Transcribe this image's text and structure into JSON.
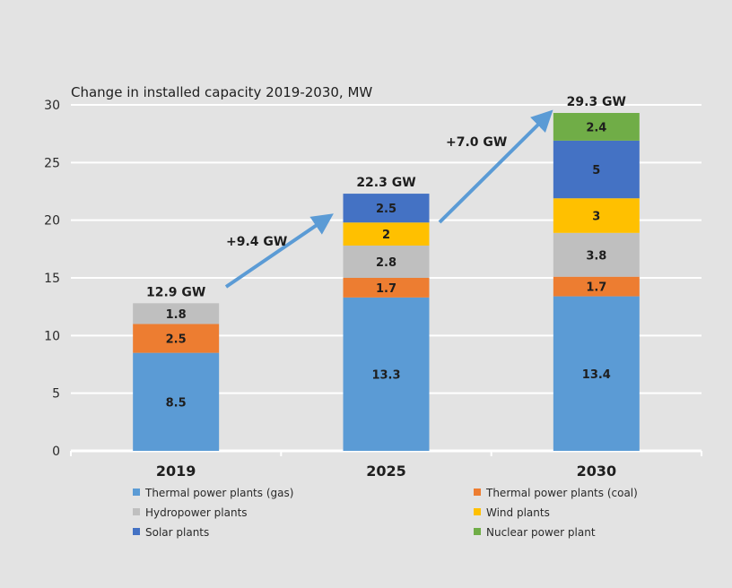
{
  "chart_data": {
    "type": "bar",
    "stacked": true,
    "title": "Change in installed capacity 2019-2030, MW",
    "xlabel": "",
    "ylabel": "",
    "ylim": [
      0,
      30
    ],
    "yticks": [
      0,
      5,
      10,
      15,
      20,
      25,
      30
    ],
    "grid": true,
    "legend_position": "bottom",
    "categories": [
      "2019",
      "2025",
      "2030"
    ],
    "series": [
      {
        "name": "Thermal power plants (gas)",
        "color": "#5b9bd5",
        "values": [
          8.5,
          13.3,
          13.4
        ]
      },
      {
        "name": "Thermal power plants (coal)",
        "color": "#ed7d31",
        "values": [
          2.5,
          1.7,
          1.7
        ]
      },
      {
        "name": "Hydropower plants",
        "color": "#bfbfbf",
        "values": [
          1.8,
          2.8,
          3.8
        ]
      },
      {
        "name": "Wind plants",
        "color": "#ffc000",
        "values": [
          null,
          2.0,
          3.0
        ]
      },
      {
        "name": "Solar plants",
        "color": "#4472c4",
        "values": [
          null,
          2.5,
          5.0
        ]
      },
      {
        "name": "Nuclear power plant",
        "color": "#70ad47",
        "values": [
          null,
          null,
          2.4
        ]
      }
    ],
    "totals": [
      "12.9 GW",
      "22.3 GW",
      "29.3 GW"
    ],
    "annotations": [
      {
        "text": "+9.4 GW",
        "from": "2019",
        "to": "2025"
      },
      {
        "text": "+7.0 GW",
        "from": "2025",
        "to": "2030"
      }
    ],
    "legend_order": [
      0,
      1,
      2,
      3,
      4,
      5
    ]
  },
  "colors": {
    "background": "#e3e3e3",
    "gridline": "#ffffff",
    "arrow": "#5b9bd5"
  }
}
